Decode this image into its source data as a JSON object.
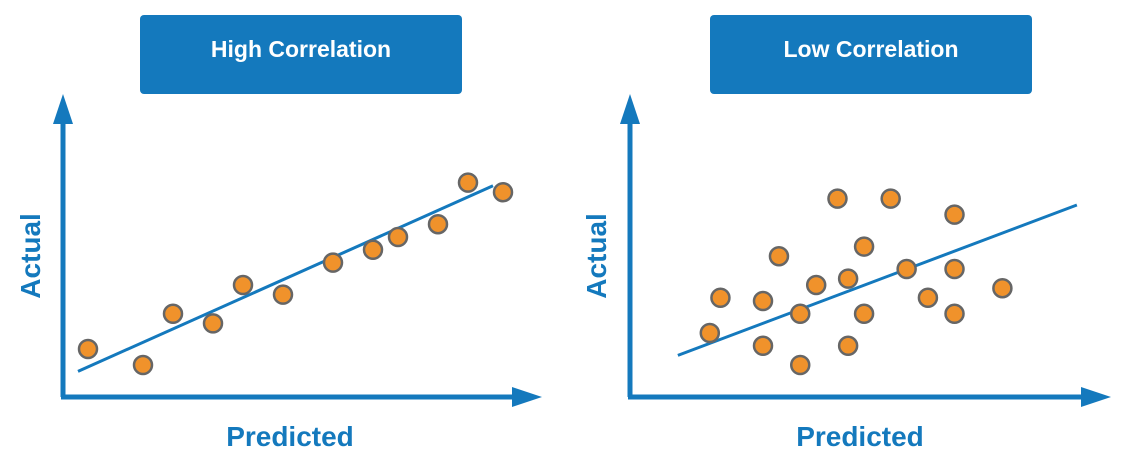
{
  "colors": {
    "accent": "#1479bd",
    "point_fill": "#f0922b",
    "point_stroke": "#666666"
  },
  "chart_data": [
    {
      "type": "scatter",
      "title": "High Correlation",
      "xlabel": "Predicted",
      "ylabel": "Actual",
      "trendline": true,
      "points": [
        {
          "x": 0.5,
          "y": 1.5
        },
        {
          "x": 1.6,
          "y": 1.0
        },
        {
          "x": 2.2,
          "y": 2.6
        },
        {
          "x": 3.0,
          "y": 2.3
        },
        {
          "x": 3.6,
          "y": 3.5
        },
        {
          "x": 4.4,
          "y": 3.2
        },
        {
          "x": 5.4,
          "y": 4.2
        },
        {
          "x": 6.2,
          "y": 4.6
        },
        {
          "x": 6.7,
          "y": 5.0
        },
        {
          "x": 7.5,
          "y": 5.4
        },
        {
          "x": 8.1,
          "y": 6.7
        },
        {
          "x": 8.8,
          "y": 6.4
        }
      ],
      "line": [
        {
          "x": 0.3,
          "y": 0.8
        },
        {
          "x": 8.6,
          "y": 6.6
        }
      ]
    },
    {
      "type": "scatter",
      "title": "Low Correlation",
      "xlabel": "Predicted",
      "ylabel": "Actual",
      "trendline": true,
      "points": [
        {
          "x": 1.5,
          "y": 2.0
        },
        {
          "x": 1.7,
          "y": 3.1
        },
        {
          "x": 2.5,
          "y": 3.0
        },
        {
          "x": 2.5,
          "y": 1.6
        },
        {
          "x": 2.8,
          "y": 4.4
        },
        {
          "x": 3.2,
          "y": 2.6
        },
        {
          "x": 3.2,
          "y": 1.0
        },
        {
          "x": 3.5,
          "y": 3.5
        },
        {
          "x": 3.9,
          "y": 6.2
        },
        {
          "x": 4.1,
          "y": 3.7
        },
        {
          "x": 4.1,
          "y": 1.6
        },
        {
          "x": 4.4,
          "y": 4.7
        },
        {
          "x": 4.4,
          "y": 2.6
        },
        {
          "x": 4.9,
          "y": 6.2
        },
        {
          "x": 5.2,
          "y": 4.0
        },
        {
          "x": 5.6,
          "y": 3.1
        },
        {
          "x": 6.1,
          "y": 5.7
        },
        {
          "x": 6.1,
          "y": 4.0
        },
        {
          "x": 6.1,
          "y": 2.6
        },
        {
          "x": 7.0,
          "y": 3.4
        }
      ],
      "line": [
        {
          "x": 0.9,
          "y": 1.3
        },
        {
          "x": 8.4,
          "y": 6.0
        }
      ]
    }
  ]
}
